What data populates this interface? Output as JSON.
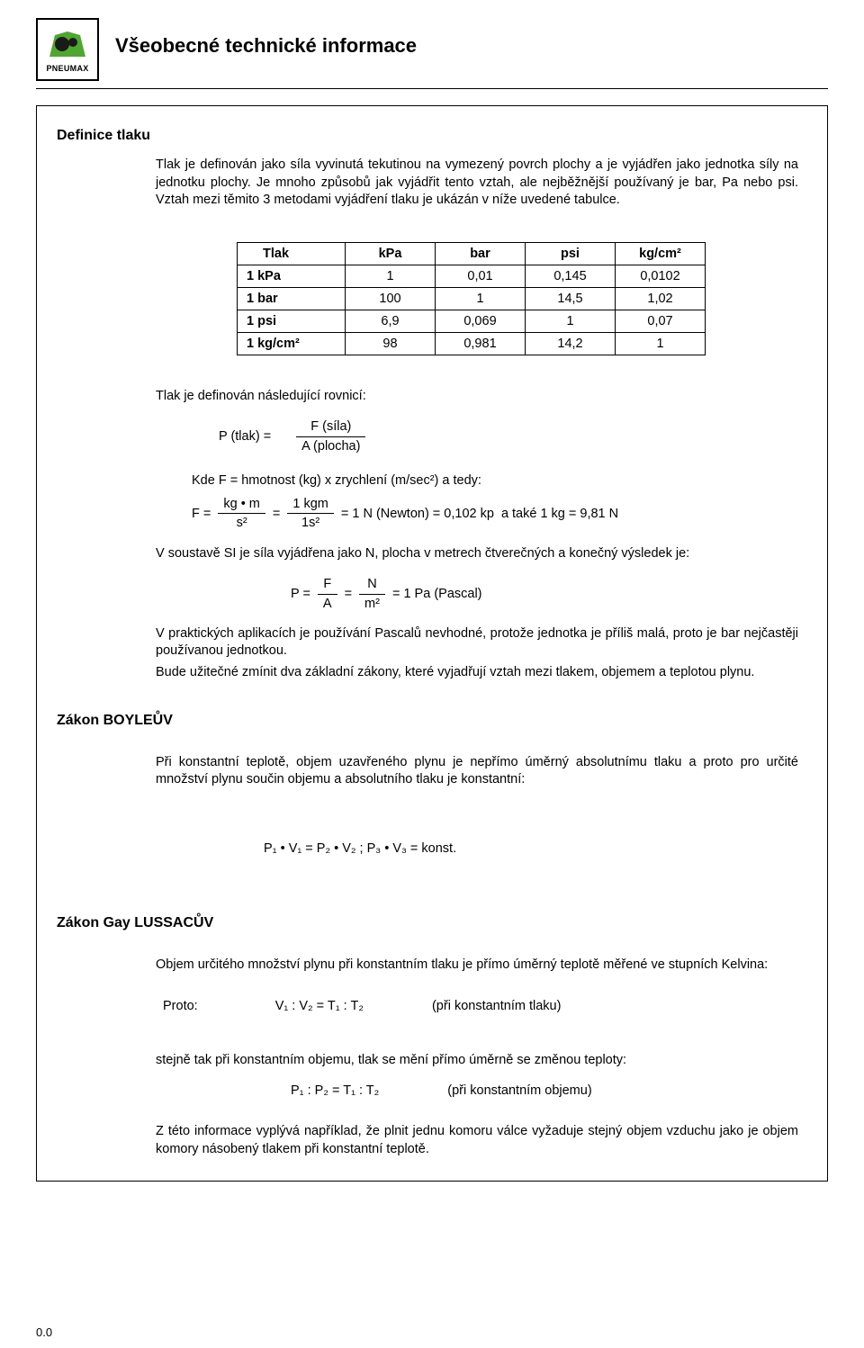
{
  "header": {
    "logo_text": "PNEUMAX",
    "page_title": "Všeobecné technické informace"
  },
  "section_definice": {
    "heading": "Definice tlaku",
    "p1": "Tlak je definován jako síla vyvinutá tekutinou na vymezený povrch plochy a je vyjádřen jako jednotka síly na jednotku plochy. Je mnoho způsobů jak vyjádřit tento vztah, ale nejběžnější používaný je bar, Pa nebo psi. Vztah mezi těmito 3 metodami vyjádření tlaku je ukázán v níže uvedené tabulce."
  },
  "table": {
    "headers": [
      "Tlak",
      "kPa",
      "bar",
      "psi",
      "kg/cm²"
    ],
    "rows": [
      {
        "label": "1 kPa",
        "cells": [
          "1",
          "0,01",
          "0,145",
          "0,0102"
        ]
      },
      {
        "label": "1 bar",
        "cells": [
          "100",
          "1",
          "14,5",
          "1,02"
        ]
      },
      {
        "label": "1 psi",
        "cells": [
          "6,9",
          "0,069",
          "1",
          "0,07"
        ]
      },
      {
        "label": "1 kg/cm²",
        "cells": [
          "98",
          "0,981",
          "14,2",
          "1"
        ]
      }
    ]
  },
  "eq": {
    "rovnice_intro": "Tlak je definován následující rovnicí:",
    "p_label": "P (tlak) =",
    "f_sila": "F (síla)",
    "a_plocha": "A (plocha)",
    "kde": "Kde F = hmotnost (kg) x zrychlení (m/sec²) a tedy:",
    "f_eq_lead": "F  =",
    "kg_m": "kg • m",
    "s2": "s²",
    "eq_sign": "=",
    "one_kgm": "1 kgm",
    "one_s2": "1s²",
    "result1": "=  1 N (Newton)  =  0,102 kp",
    "result1b": "a také 1 kg = 9,81 N",
    "si_line": "V soustavě SI je síla vyjádřena jako N, plocha v metrech čtverečných a konečný výsledek je:",
    "p_eq_lead": "P  =",
    "F": "F",
    "A": "A",
    "N": "N",
    "m2": "m²",
    "pascal": "=  1 Pa (Pascal)",
    "practical": "V praktických aplikacích je používání Pascalů nevhodné, protože jednotka je příliš malá, proto je bar nejčastěji používanou jednotkou.",
    "bude": "Bude užitečné zmínit dva základní zákony, které vyjadřují vztah mezi tlakem, objemem a teplotou plynu."
  },
  "boyle": {
    "heading": "Zákon BOYLEŮV",
    "para": "Při konstantní teplotě, objem uzavřeného plynu je nepřímo úměrný absolutnímu tlaku a proto pro určité množství plynu součin objemu a absolutního tlaku je konstantní:",
    "formula": "P₁ • V₁  =  P₂ • V₂  ;  P₃  •  V₃  =  konst."
  },
  "gay": {
    "heading": "Zákon Gay LUSSACŮV",
    "para1": "Objem určitého množství plynu při konstantním tlaku je přímo úměrný teplotě měřené ve stupních Kelvina:",
    "proto": "Proto:",
    "formula1": "V₁ : V₂  =  T₁ : T₂",
    "note1": "(při konstantním tlaku)",
    "para2": "stejně tak při konstantním objemu, tlak se mění přímo úměrně se změnou teploty:",
    "formula2": "P₁ : P₂ = T₁ : T₂",
    "note2": "(při konstantním objemu)",
    "closing": "Z této informace vyplývá například, že plnit jednu komoru válce vyžaduje stejný objem vzduchu jako je objem komory násobený tlakem při konstantní teplotě."
  },
  "page_number": "0.0",
  "colors": {
    "text": "#000000",
    "bg": "#ffffff",
    "logo_green": "#4ea72e",
    "logo_dark": "#1a1a1a"
  }
}
